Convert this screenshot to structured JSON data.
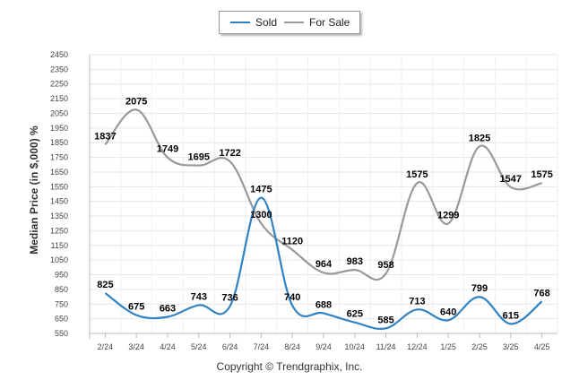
{
  "chart_data": {
    "type": "line",
    "categories": [
      "2/24",
      "3/24",
      "4/24",
      "5/24",
      "6/24",
      "7/24",
      "8/24",
      "9/24",
      "10/24",
      "11/24",
      "12/24",
      "1/25",
      "2/25",
      "3/25",
      "4/25"
    ],
    "series": [
      {
        "name": "Sold",
        "color": "#2f82c4",
        "values": [
          825,
          675,
          663,
          743,
          736,
          1475,
          740,
          688,
          625,
          585,
          713,
          640,
          799,
          615,
          768
        ]
      },
      {
        "name": "For Sale",
        "color": "#999999",
        "values": [
          1837,
          2075,
          1749,
          1695,
          1722,
          1300,
          1120,
          964,
          983,
          958,
          1575,
          1299,
          1825,
          1547,
          1575
        ]
      }
    ],
    "ylabel": "Median Price (in $,000) %",
    "ylim": [
      550,
      2450
    ],
    "yticks": [
      550,
      650,
      750,
      850,
      950,
      1050,
      1150,
      1250,
      1350,
      1450,
      1550,
      1650,
      1750,
      1850,
      1950,
      2050,
      2150,
      2250,
      2350,
      2450
    ],
    "grid": true,
    "legend_position": "top-center"
  },
  "legend": {
    "sold": "Sold",
    "for_sale": "For Sale"
  },
  "footer": {
    "copyright": "Copyright © Trendgraphix, Inc."
  }
}
